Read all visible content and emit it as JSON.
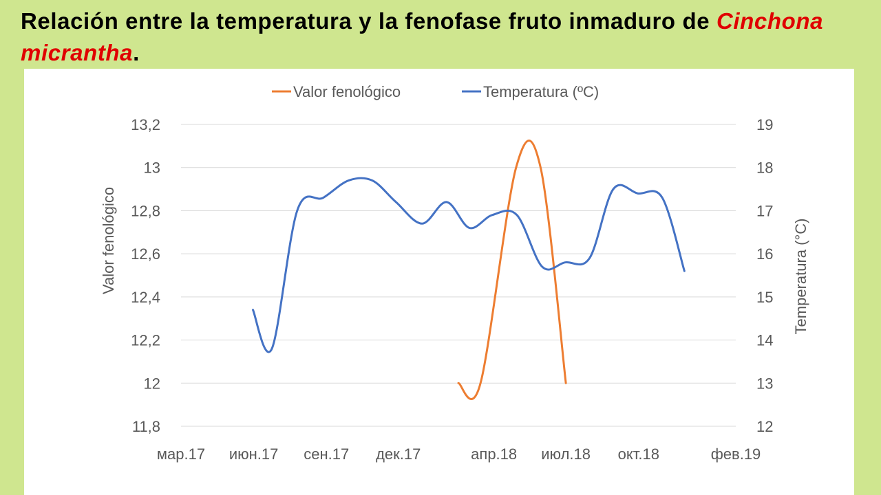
{
  "slide": {
    "title_part1": "Relación entre la temperatura y la fenofase fruto inmaduro de ",
    "title_species": "Cinchona micrantha",
    "title_end": "."
  },
  "colors": {
    "background": "#cfe68f",
    "title_species": "#e00000",
    "series_phenology": "#ed7d31",
    "series_temperature": "#4472c4",
    "gridline": "#d9d9d9",
    "axis_text": "#595959"
  },
  "chart_data": {
    "type": "line",
    "legend_position": "top",
    "grid": true,
    "x_axis": {
      "type": "date",
      "range": [
        "2017-03-01",
        "2019-02-01"
      ],
      "tick_dates": [
        "2017-03-01",
        "2017-06-01",
        "2017-09-01",
        "2017-12-01",
        "2018-04-01",
        "2018-07-01",
        "2018-10-01",
        "2019-02-01"
      ],
      "tick_labels": [
        "мар.17",
        "июн.17",
        "сен.17",
        "дек.17",
        "апр.18",
        "июл.18",
        "окт.18",
        "фев.19"
      ]
    },
    "y_left": {
      "label": "Valor fenológico",
      "range": [
        11.8,
        13.2
      ],
      "ticks": [
        11.8,
        12,
        12.2,
        12.4,
        12.6,
        12.8,
        13,
        13.2
      ],
      "tick_labels": [
        "11,8",
        "12",
        "12,2",
        "12,4",
        "12,6",
        "12,8",
        "13",
        "13,2"
      ]
    },
    "y_right": {
      "label": "Temperatura (°C)",
      "range": [
        12,
        19
      ],
      "ticks": [
        12,
        13,
        14,
        15,
        16,
        17,
        18,
        19
      ],
      "tick_labels": [
        "12",
        "13",
        "14",
        "15",
        "16",
        "17",
        "18",
        "19"
      ]
    },
    "series": [
      {
        "name": "Valor fenológico",
        "axis": "left",
        "color": "#ed7d31",
        "points": [
          {
            "x": "2018-02-15",
            "y": 12.0
          },
          {
            "x": "2018-03-15",
            "y": 12.0
          },
          {
            "x": "2018-04-29",
            "y": 13.0
          },
          {
            "x": "2018-05-30",
            "y": 13.0
          },
          {
            "x": "2018-07-01",
            "y": 12.0
          }
        ]
      },
      {
        "name": "Temperatura (ºC)",
        "axis": "right",
        "color": "#4472c4",
        "points": [
          {
            "x": "2017-05-31",
            "y": 14.7
          },
          {
            "x": "2017-06-24",
            "y": 13.8
          },
          {
            "x": "2017-07-26",
            "y": 17.0
          },
          {
            "x": "2017-08-28",
            "y": 17.3
          },
          {
            "x": "2017-09-29",
            "y": 17.7
          },
          {
            "x": "2017-10-29",
            "y": 17.7
          },
          {
            "x": "2017-11-28",
            "y": 17.2
          },
          {
            "x": "2017-12-31",
            "y": 16.7
          },
          {
            "x": "2018-01-31",
            "y": 17.2
          },
          {
            "x": "2018-03-01",
            "y": 16.6
          },
          {
            "x": "2018-03-30",
            "y": 16.9
          },
          {
            "x": "2018-04-30",
            "y": 16.9
          },
          {
            "x": "2018-06-01",
            "y": 15.7
          },
          {
            "x": "2018-06-30",
            "y": 15.8
          },
          {
            "x": "2018-07-31",
            "y": 15.9
          },
          {
            "x": "2018-08-30",
            "y": 17.5
          },
          {
            "x": "2018-09-30",
            "y": 17.4
          },
          {
            "x": "2018-10-31",
            "y": 17.3
          },
          {
            "x": "2018-11-28",
            "y": 15.6
          }
        ]
      }
    ]
  }
}
